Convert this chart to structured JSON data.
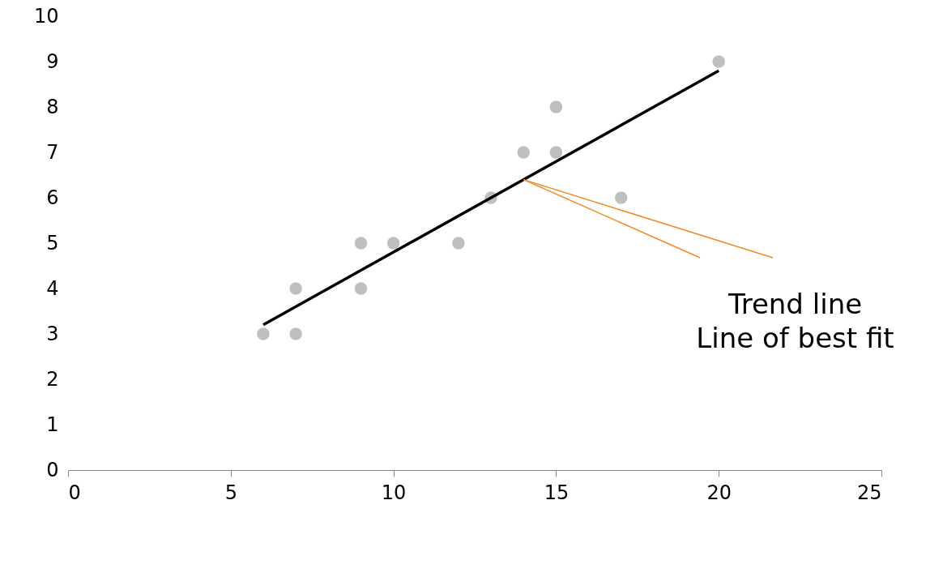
{
  "chart_data": {
    "type": "scatter",
    "x": [
      6,
      7,
      7,
      9,
      9,
      10,
      12,
      13,
      14,
      15,
      15,
      17,
      20
    ],
    "series": [
      {
        "type": "scatter",
        "color": "#bfbfbf",
        "marker": "circle",
        "values": [
          3,
          4,
          3,
          5,
          4,
          5,
          5,
          6,
          7,
          8,
          7,
          6,
          9
        ]
      },
      {
        "type": "line",
        "color": "#000000",
        "marker": "none",
        "x": [
          6,
          20
        ],
        "values": [
          3.2,
          8.8
        ]
      }
    ],
    "xlim": [
      0,
      25
    ],
    "xticks": [
      0,
      5,
      10,
      15,
      20,
      25
    ],
    "ylim": [
      0,
      10
    ],
    "yticks": [
      0,
      1,
      2,
      3,
      4,
      5,
      6,
      7,
      8,
      9,
      10
    ],
    "grid": false,
    "annotations": [
      {
        "text": "Trend line\nLine of best fit",
        "x": 14,
        "y": 6.4
      }
    ]
  }
}
